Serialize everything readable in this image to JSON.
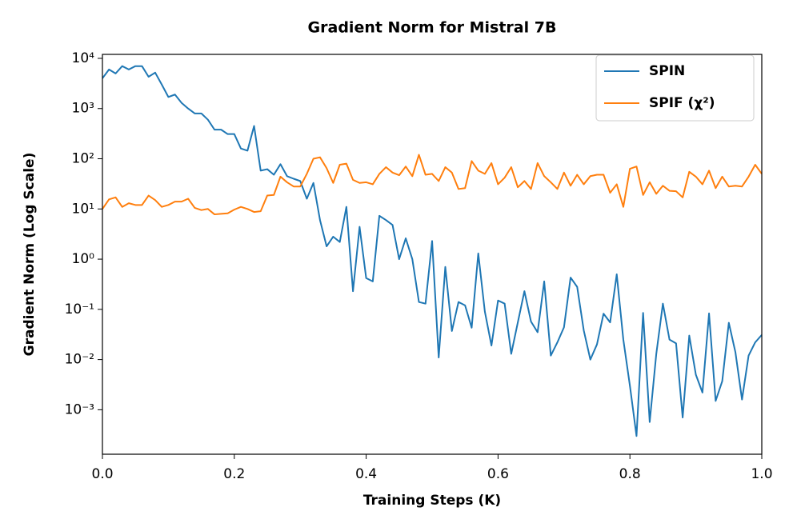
{
  "chart_data": {
    "type": "line",
    "title": "Gradient Norm for Mistral 7B",
    "x_label": "Training Steps (K)",
    "y_label": "Gradient Norm (Log Scale)",
    "log_scale_y": true,
    "grid": false,
    "legend_position": "upper right",
    "xlim": [
      0,
      1
    ],
    "xticks": [
      {
        "value": 0,
        "label": "0.0"
      },
      0.2,
      0.4,
      0.6,
      0.8,
      {
        "value": 1,
        "label": "1.0"
      }
    ],
    "ylim": [
      0.00013,
      12000
    ],
    "yticks": [
      {
        "value": 0.001,
        "label": "10⁻³"
      },
      {
        "value": 0.01,
        "label": "10⁻²"
      },
      {
        "value": 0.1,
        "label": "10⁻¹"
      },
      {
        "value": 1,
        "label": "10⁰"
      },
      {
        "value": 10,
        "label": "10¹"
      },
      {
        "value": 100,
        "label": "10²"
      },
      {
        "value": 1000,
        "label": "10³"
      },
      {
        "value": 10000,
        "label": "10⁴"
      }
    ],
    "x": [
      0,
      0.01,
      0.02,
      0.03,
      0.04,
      0.05,
      0.06,
      0.07,
      0.08,
      0.09,
      0.1,
      0.11,
      0.12,
      0.13,
      0.14,
      0.15,
      0.16,
      0.17,
      0.18,
      0.19,
      0.2,
      0.21,
      0.22,
      0.23,
      0.24,
      0.25,
      0.26,
      0.27,
      0.28,
      0.29,
      0.3,
      0.31,
      0.32,
      0.33,
      0.34,
      0.35,
      0.36,
      0.37,
      0.38,
      0.39,
      0.4,
      0.41,
      0.42,
      0.43,
      0.44,
      0.45,
      0.46,
      0.47,
      0.48,
      0.49,
      0.5,
      0.51,
      0.52,
      0.53,
      0.54,
      0.55,
      0.56,
      0.57,
      0.58,
      0.59,
      0.6,
      0.61,
      0.62,
      0.63,
      0.64,
      0.65,
      0.66,
      0.67,
      0.68,
      0.69,
      0.7,
      0.71,
      0.72,
      0.73,
      0.74,
      0.75,
      0.76,
      0.77,
      0.78,
      0.79,
      0.8,
      0.81,
      0.82,
      0.83,
      0.84,
      0.85,
      0.86,
      0.87,
      0.88,
      0.89,
      0.9,
      0.91,
      0.92,
      0.93,
      0.94,
      0.95,
      0.96,
      0.97,
      0.98,
      0.99,
      1
    ],
    "series": [
      {
        "name": "SPIN",
        "color": "#1f77b4",
        "values": [
          4000,
          6000,
          5000,
          7000,
          6000,
          7000,
          7000,
          4300,
          5200,
          3000,
          1700,
          1900,
          1300,
          1000,
          800,
          800,
          600,
          380,
          380,
          310,
          310,
          160,
          145,
          450,
          58,
          62,
          48,
          78,
          45,
          40,
          36,
          16,
          33,
          6,
          1.8,
          2.8,
          2.2,
          11,
          0.23,
          4.4,
          0.42,
          0.36,
          7.3,
          6,
          4.8,
          1.0,
          2.6,
          1.0,
          0.14,
          0.13,
          2.3,
          0.011,
          0.7,
          0.037,
          0.14,
          0.12,
          0.043,
          1.3,
          0.09,
          0.019,
          0.15,
          0.13,
          0.013,
          0.055,
          0.23,
          0.057,
          0.035,
          0.36,
          0.012,
          0.022,
          0.044,
          0.43,
          0.28,
          0.038,
          0.01,
          0.02,
          0.082,
          0.055,
          0.5,
          0.025,
          0.003,
          0.0003,
          0.085,
          0.00057,
          0.013,
          0.13,
          0.025,
          0.021,
          0.0007,
          0.03,
          0.005,
          0.0022,
          0.083,
          0.0015,
          0.0037,
          0.054,
          0.014,
          0.0016,
          0.012,
          0.022,
          0.031
        ]
      },
      {
        "name": "SPIF (χ²)",
        "color": "#ff7f0e",
        "values": [
          10,
          15.5,
          17,
          11,
          13,
          12,
          12,
          18.5,
          15,
          11,
          12,
          14,
          14,
          16,
          10.5,
          9.5,
          10,
          7.8,
          8,
          8.2,
          9.7,
          11,
          10,
          8.7,
          9,
          18.5,
          19,
          44,
          34,
          28,
          28,
          50,
          100,
          107,
          65,
          33,
          76,
          80,
          38,
          33,
          34,
          31,
          50,
          68,
          53,
          47,
          70,
          45,
          120,
          48,
          50,
          36,
          68,
          53,
          25,
          26,
          90,
          58,
          50,
          82,
          31,
          42,
          68,
          27,
          36,
          25,
          82,
          45,
          34,
          25,
          53,
          29,
          48,
          31,
          45,
          48,
          48,
          21,
          31,
          11,
          63,
          70,
          19,
          34,
          20,
          29,
          23,
          22.5,
          17,
          55,
          44,
          31,
          58,
          26,
          44,
          28,
          29,
          28,
          44,
          76,
          50
        ]
      }
    ]
  }
}
